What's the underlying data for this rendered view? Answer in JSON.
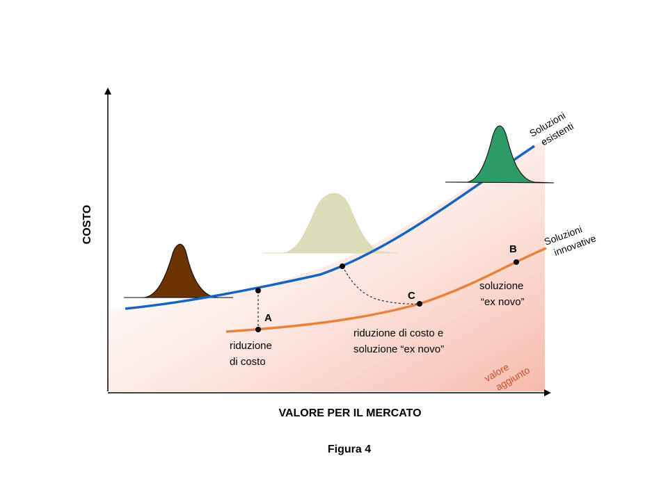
{
  "axes": {
    "y_label": "COSTO",
    "x_label": "VALORE PER IL MERCATO"
  },
  "curves": {
    "existing": {
      "label_line1": "Soluzioni",
      "label_line2": "esistenti",
      "color": "#1565C0"
    },
    "innovative": {
      "label_line1": "Soluzioni",
      "label_line2": "innovative",
      "color": "#E8823A"
    }
  },
  "distributions": {
    "left_color": "#6B3300",
    "middle_color": "#DCDCB8",
    "right_color": "#2E9B66"
  },
  "points": {
    "a": {
      "label": "A"
    },
    "b": {
      "label": "B"
    },
    "c": {
      "label": "C"
    }
  },
  "annotations": {
    "cost_reduction_line1": "riduzione",
    "cost_reduction_line2": "di costo",
    "combined_line1": "riduzione di costo e",
    "combined_line2": "soluzione “ex novo”",
    "ex_novo_line1": "soluzione",
    "ex_novo_line2": "“ex novo”",
    "added_value_line1": "valore",
    "added_value_line2": "aggiunto",
    "added_value_color": "#C0502A"
  },
  "caption": "Figura 4"
}
